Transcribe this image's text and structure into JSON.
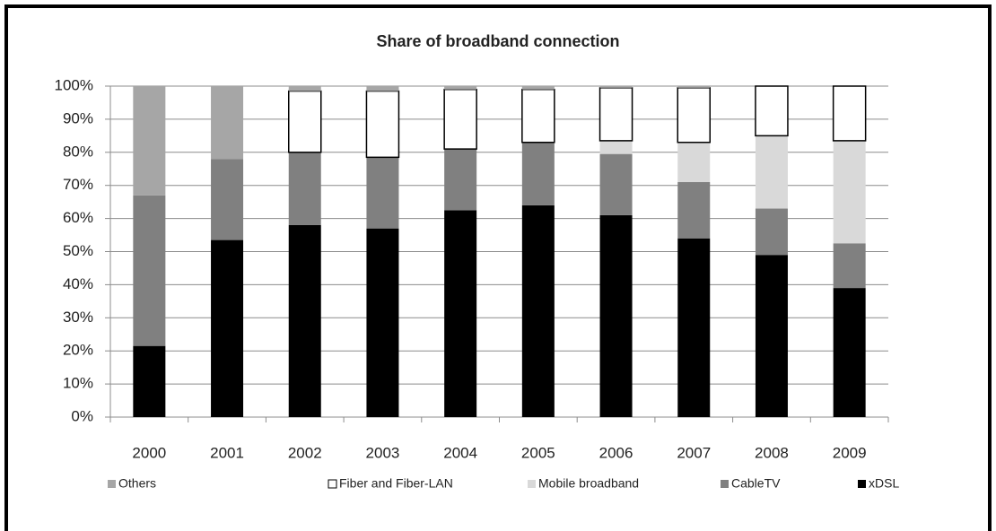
{
  "chart_data": {
    "type": "stacked_bar",
    "title": "Share of broadband connection",
    "categories": [
      "2000",
      "2001",
      "2002",
      "2003",
      "2004",
      "2005",
      "2006",
      "2007",
      "2008",
      "2009"
    ],
    "series": [
      {
        "name": "Others",
        "color": "#a6a6a6",
        "values": [
          33,
          22,
          1.5,
          1.5,
          1,
          1,
          0.5,
          0.5,
          0,
          0
        ]
      },
      {
        "name": "Fiber and Fiber-LAN",
        "color": "#ffffff",
        "values": [
          0,
          0,
          18.5,
          20,
          18,
          16,
          16,
          16.5,
          15,
          16.5
        ]
      },
      {
        "name": "Mobile broadband",
        "color": "#d9d9d9",
        "values": [
          0,
          0,
          0,
          0,
          0,
          0,
          4,
          12,
          22,
          31
        ]
      },
      {
        "name": "CableTV",
        "color": "#808080",
        "values": [
          45.5,
          24.5,
          22,
          21.5,
          18.5,
          19,
          18.5,
          17,
          14,
          13.5
        ]
      },
      {
        "name": "xDSL",
        "color": "#000000",
        "values": [
          21.5,
          53.5,
          58,
          57,
          62.5,
          64,
          61,
          54,
          49,
          39
        ]
      }
    ],
    "ylim": [
      0,
      100
    ],
    "yticks": [
      {
        "value": 0,
        "label": "0%"
      },
      {
        "value": 10,
        "label": "10%"
      },
      {
        "value": 20,
        "label": "20%"
      },
      {
        "value": 30,
        "label": "30%"
      },
      {
        "value": 40,
        "label": "40%"
      },
      {
        "value": 50,
        "label": "50%"
      },
      {
        "value": 60,
        "label": "60%"
      },
      {
        "value": 70,
        "label": "70%"
      },
      {
        "value": 80,
        "label": "80%"
      },
      {
        "value": 90,
        "label": "90%"
      },
      {
        "value": 100,
        "label": "100%"
      }
    ],
    "grid": true,
    "legend": "bottom"
  }
}
